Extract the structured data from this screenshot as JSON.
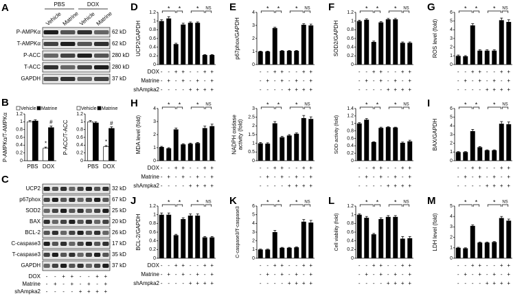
{
  "blot_a": {
    "label": "A",
    "groups": [
      "PBS",
      "DOX"
    ],
    "lanes": [
      "Vehicle",
      "Matrine",
      "Vehicle",
      "Matrine"
    ],
    "rows": [
      {
        "name": "P-AMPKα",
        "size": "62 kD"
      },
      {
        "name": "T-AMPKα",
        "size": "62 kD"
      },
      {
        "name": "P-ACC",
        "size": "280 kD"
      },
      {
        "name": "T-ACC",
        "size": "280 kD"
      },
      {
        "name": "GAPDH",
        "size": "37 kD"
      }
    ]
  },
  "blot_c": {
    "label": "C",
    "rows": [
      {
        "name": "UCP2",
        "size": "32 kD"
      },
      {
        "name": "p67phox",
        "size": "67 kD"
      },
      {
        "name": "SOD2",
        "size": "25 kD"
      },
      {
        "name": "BAX",
        "size": "20 kD"
      },
      {
        "name": "BCL-2",
        "size": "26 kD"
      },
      {
        "name": "C-caspase3",
        "size": "17 kD"
      },
      {
        "name": "T-caspase3",
        "size": "35 kD"
      },
      {
        "name": "GAPDH",
        "size": "37 kD"
      }
    ]
  },
  "conditions": [
    {
      "name": "DOX",
      "signs": [
        "-",
        "-",
        "+",
        "+",
        "-",
        "-",
        "+",
        "+"
      ]
    },
    {
      "name": "Matrine",
      "signs": [
        "-",
        "+",
        "-",
        "+",
        "-",
        "+",
        "-",
        "+"
      ]
    },
    {
      "name": "shAmpka2",
      "signs": [
        "-",
        "-",
        "-",
        "-",
        "+",
        "+",
        "+",
        "+"
      ]
    }
  ],
  "chart_data": [
    {
      "type": "grouped_bar",
      "label": "B",
      "ylabel": "P-AMPKα/T-AMPKα",
      "categories": [
        "PBS",
        "DOX"
      ],
      "series": [
        {
          "name": "Vehicle",
          "color": "#ffffff",
          "values": [
            1.0,
            0.32
          ],
          "errors": [
            0.03,
            0.03
          ]
        },
        {
          "name": "Matrine",
          "color": "#000000",
          "values": [
            1.02,
            0.85
          ],
          "errors": [
            0.03,
            0.04
          ]
        }
      ],
      "annotations": [
        "*",
        "#"
      ],
      "ylim": [
        0,
        1.2
      ],
      "yticks": [
        0,
        0.2,
        0.4,
        0.6,
        0.8,
        1,
        1.2
      ]
    },
    {
      "type": "grouped_bar",
      "ylabel": "P-ACC/T-ACC",
      "categories": [
        "PBS",
        "DOX"
      ],
      "series": [
        {
          "name": "Vehicle",
          "color": "#ffffff",
          "values": [
            1.0,
            0.36
          ],
          "errors": [
            0.03,
            0.03
          ]
        },
        {
          "name": "Matrine",
          "color": "#000000",
          "values": [
            0.97,
            0.83
          ],
          "errors": [
            0.03,
            0.04
          ]
        }
      ],
      "annotations": [
        "*",
        "#"
      ],
      "ylim": [
        0,
        1.2
      ],
      "yticks": [
        0,
        0.2,
        0.4,
        0.6,
        0.8,
        1,
        1.2
      ]
    },
    {
      "type": "bar",
      "label": "D",
      "ylabel": "UCP2/GAPDH",
      "color": "#000000",
      "values": [
        1.0,
        1.06,
        0.47,
        0.92,
        0.96,
        0.96,
        0.22,
        0.22
      ],
      "errors": [
        0.03,
        0.04,
        0.02,
        0.03,
        0.02,
        0.02,
        0.01,
        0.01
      ],
      "significance": [
        "*",
        "*",
        "*",
        "NS"
      ],
      "ylim": [
        0,
        1.2
      ],
      "yticks": [
        0,
        0.2,
        0.4,
        0.6,
        0.8,
        1,
        1.2
      ]
    },
    {
      "type": "bar",
      "label": "E",
      "ylabel": "p67phox/GAPDH",
      "color": "#000000",
      "values": [
        1.0,
        1.0,
        2.8,
        1.05,
        1.05,
        1.05,
        3.05,
        3.0
      ],
      "errors": [
        0.03,
        0.03,
        0.06,
        0.03,
        0.03,
        0.03,
        0.08,
        0.1
      ],
      "significance": [
        "*",
        "*",
        "*",
        "NS"
      ],
      "ylim": [
        0,
        4
      ],
      "yticks": [
        0,
        1,
        2,
        3,
        4
      ]
    },
    {
      "type": "bar",
      "label": "F",
      "ylabel": "SOD2/GAPDH",
      "color": "#000000",
      "values": [
        1.0,
        1.03,
        0.52,
        0.97,
        1.04,
        1.04,
        0.5,
        0.5
      ],
      "errors": [
        0.02,
        0.02,
        0.02,
        0.02,
        0.02,
        0.02,
        0.02,
        0.02
      ],
      "significance": [
        "*",
        "*",
        "*",
        "NS"
      ],
      "ylim": [
        0,
        1.2
      ],
      "yticks": [
        0,
        0.2,
        0.4,
        0.6,
        0.8,
        1,
        1.2
      ]
    },
    {
      "type": "bar",
      "label": "G",
      "ylabel": "ROS level (fold)",
      "color": "#000000",
      "values": [
        1.0,
        0.95,
        4.5,
        1.6,
        1.6,
        1.6,
        5.1,
        4.9
      ],
      "errors": [
        0.1,
        0.08,
        0.2,
        0.1,
        0.1,
        0.1,
        0.25,
        0.25
      ],
      "significance": [
        "*",
        "*",
        "*",
        "NS"
      ],
      "ylim": [
        0,
        6
      ],
      "yticks": [
        0,
        1,
        2,
        3,
        4,
        5,
        6
      ]
    },
    {
      "type": "bar",
      "label": "H",
      "ylabel": "MDA level (fold)",
      "color": "#000000",
      "values": [
        1.05,
        0.95,
        2.4,
        1.25,
        1.3,
        1.35,
        2.5,
        2.65
      ],
      "errors": [
        0.05,
        0.05,
        0.1,
        0.05,
        0.05,
        0.05,
        0.15,
        0.15
      ],
      "significance": [
        "*",
        "*",
        "*",
        "NS"
      ],
      "ylim": [
        0,
        4
      ],
      "yticks": [
        0,
        1,
        2,
        3,
        4
      ]
    },
    {
      "type": "bar",
      "ylabel": [
        "NADPH oxidase",
        "activity (fold)"
      ],
      "color": "#000000",
      "values": [
        1.0,
        0.98,
        2.15,
        1.35,
        1.45,
        1.55,
        2.45,
        2.4
      ],
      "errors": [
        0.05,
        0.05,
        0.1,
        0.05,
        0.05,
        0.05,
        0.15,
        0.12
      ],
      "significance": [
        "*",
        "*",
        "*",
        "NS"
      ],
      "ylim": [
        0,
        3
      ],
      "yticks": [
        0,
        0.5,
        1,
        1.5,
        2,
        2.5,
        3
      ]
    },
    {
      "type": "bar",
      "ylabel": "SOD activity (fold)",
      "color": "#000000",
      "values": [
        1.0,
        1.1,
        0.5,
        0.88,
        0.9,
        0.89,
        0.48,
        0.52
      ],
      "errors": [
        0.02,
        0.03,
        0.01,
        0.02,
        0.01,
        0.01,
        0.02,
        0.03
      ],
      "significance": [
        "*",
        "*",
        "*",
        "NS"
      ],
      "ylim": [
        0,
        1.4
      ],
      "yticks": [
        0,
        0.2,
        0.4,
        0.6,
        0.8,
        1,
        1.2,
        1.4
      ]
    },
    {
      "type": "bar",
      "label": "I",
      "ylabel": "BAX/GAPDH",
      "color": "#000000",
      "values": [
        1.0,
        1.0,
        3.4,
        1.55,
        1.2,
        1.2,
        4.25,
        4.2
      ],
      "errors": [
        0.05,
        0.05,
        0.2,
        0.08,
        0.05,
        0.05,
        0.25,
        0.25
      ],
      "significance": [
        "*",
        "*",
        "*",
        "NS"
      ],
      "ylim": [
        0,
        6
      ],
      "yticks": [
        0,
        1,
        2,
        3,
        4,
        5,
        6
      ]
    },
    {
      "type": "bar",
      "label": "J",
      "ylabel": "BCL-2/GAPDH",
      "color": "#000000",
      "values": [
        1.0,
        1.0,
        0.53,
        0.9,
        0.98,
        0.98,
        0.48,
        0.48
      ],
      "errors": [
        0.04,
        0.04,
        0.02,
        0.03,
        0.04,
        0.04,
        0.02,
        0.02
      ],
      "significance": [
        "*",
        "*",
        "*",
        "NS"
      ],
      "ylim": [
        0,
        1.2
      ],
      "yticks": [
        0,
        0.2,
        0.4,
        0.6,
        0.8,
        1,
        1.2
      ]
    },
    {
      "type": "bar",
      "label": "K",
      "ylabel": "C-caspase3/T-caspase3",
      "color": "#000000",
      "values": [
        1.0,
        1.0,
        3.0,
        1.2,
        1.2,
        1.25,
        4.2,
        4.1
      ],
      "errors": [
        0.05,
        0.05,
        0.2,
        0.05,
        0.05,
        0.05,
        0.25,
        0.25
      ],
      "significance": [
        "*",
        "*",
        "*",
        "NS"
      ],
      "ylim": [
        0,
        6
      ],
      "yticks": [
        0,
        1,
        2,
        3,
        4,
        5,
        6
      ]
    },
    {
      "type": "bar",
      "label": "L",
      "ylabel": "Cell viability (fold)",
      "color": "#000000",
      "values": [
        1.0,
        0.93,
        0.55,
        0.9,
        0.95,
        0.95,
        0.45,
        0.46
      ],
      "errors": [
        0.02,
        0.03,
        0.02,
        0.03,
        0.03,
        0.03,
        0.05,
        0.04
      ],
      "significance": [
        "*",
        "*",
        "*",
        "NS"
      ],
      "ylim": [
        0,
        1.2
      ],
      "yticks": [
        0,
        0.2,
        0.4,
        0.6,
        0.8,
        1,
        1.2
      ]
    },
    {
      "type": "bar",
      "label": "M",
      "ylabel": "LDH level (fold)",
      "color": "#000000",
      "values": [
        1.0,
        0.95,
        3.1,
        1.5,
        1.5,
        1.55,
        3.85,
        3.6
      ],
      "errors": [
        0.05,
        0.05,
        0.1,
        0.05,
        0.05,
        0.05,
        0.15,
        0.15
      ],
      "significance": [
        "*",
        "*",
        "*",
        "NS"
      ],
      "ylim": [
        0,
        5
      ],
      "yticks": [
        0,
        1,
        2,
        3,
        4,
        5
      ]
    }
  ]
}
